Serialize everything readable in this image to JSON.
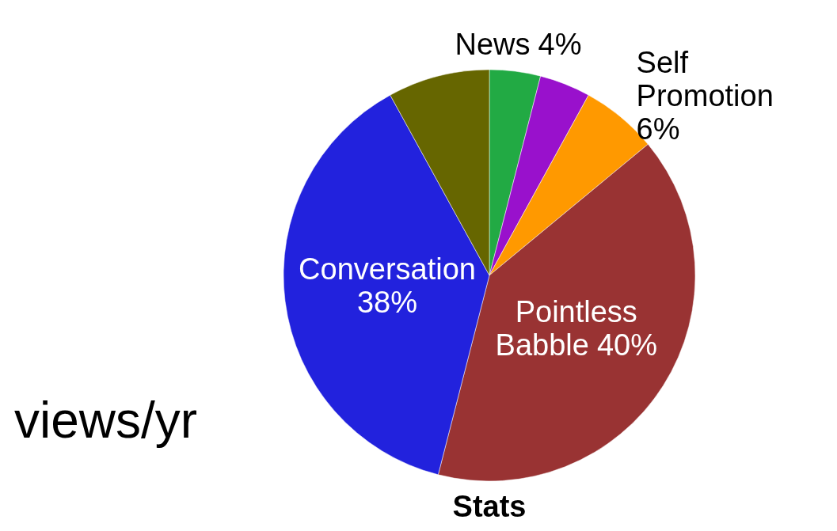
{
  "chart_data": {
    "type": "pie",
    "title": "Stats",
    "categories": [
      "News",
      null,
      "Self Promotion",
      "Pointless Babble",
      "Conversation",
      null
    ],
    "values": [
      4,
      4,
      6,
      40,
      38,
      8
    ],
    "colors": [
      "#22aa44",
      "#9911cc",
      "#ff9900",
      "#993333",
      "#2222dd",
      "#666600"
    ],
    "value_labels": [
      "4%",
      null,
      "6%",
      "40%",
      "38%",
      null
    ],
    "annotations": [
      "views/yr"
    ]
  }
}
